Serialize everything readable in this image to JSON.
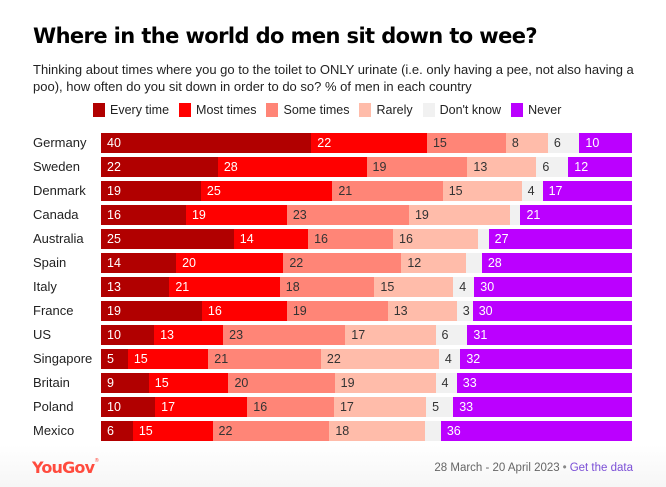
{
  "header": {
    "title": "Where in the world do men sit down to wee?",
    "subtitle": "Thinking about times where you go to the toilet to ONLY urinate (i.e. only having a pee, not also having a poo), how often do you sit down in order to do so? % of men in each country"
  },
  "footer": {
    "logo": "YouGov",
    "date_range": "28 March - 20 April 2023",
    "separator": "•",
    "link_label": "Get the data"
  },
  "chart_data": {
    "type": "bar",
    "orientation": "horizontal",
    "stacked": true,
    "title": "Where in the world do men sit down to wee?",
    "xlabel": "",
    "ylabel": "",
    "legend_position": "top",
    "categories": [
      "Germany",
      "Sweden",
      "Denmark",
      "Canada",
      "Australia",
      "Spain",
      "Italy",
      "France",
      "US",
      "Singapore",
      "Britain",
      "Poland",
      "Mexico"
    ],
    "series": [
      {
        "name": "Every time",
        "color": "#b10000",
        "text_color": "#ffffff",
        "values": [
          40,
          22,
          19,
          16,
          25,
          14,
          13,
          19,
          10,
          5,
          9,
          10,
          6
        ]
      },
      {
        "name": "Most times",
        "color": "#ff0000",
        "text_color": "#ffffff",
        "values": [
          22,
          28,
          25,
          19,
          14,
          20,
          21,
          16,
          13,
          15,
          15,
          17,
          15
        ]
      },
      {
        "name": "Some times",
        "color": "#ff8577",
        "text_color": "#333333",
        "values": [
          15,
          19,
          21,
          23,
          16,
          22,
          18,
          19,
          23,
          21,
          20,
          16,
          22
        ]
      },
      {
        "name": "Rarely",
        "color": "#ffbcaa",
        "text_color": "#333333",
        "values": [
          8,
          13,
          15,
          19,
          16,
          12,
          15,
          13,
          17,
          22,
          19,
          17,
          18
        ]
      },
      {
        "name": "Don't know",
        "color": "#f1f1f1",
        "text_color": "#333333",
        "values": [
          6,
          6,
          4,
          2,
          2,
          3,
          4,
          3,
          6,
          4,
          4,
          5,
          3
        ],
        "hidden_labels": [
          false,
          false,
          false,
          true,
          true,
          true,
          false,
          false,
          false,
          false,
          false,
          false,
          true
        ]
      },
      {
        "name": "Never",
        "color": "#bb00ff",
        "text_color": "#ffffff",
        "values": [
          10,
          12,
          17,
          21,
          27,
          28,
          30,
          30,
          31,
          32,
          33,
          33,
          36
        ]
      }
    ],
    "unit": "%"
  }
}
